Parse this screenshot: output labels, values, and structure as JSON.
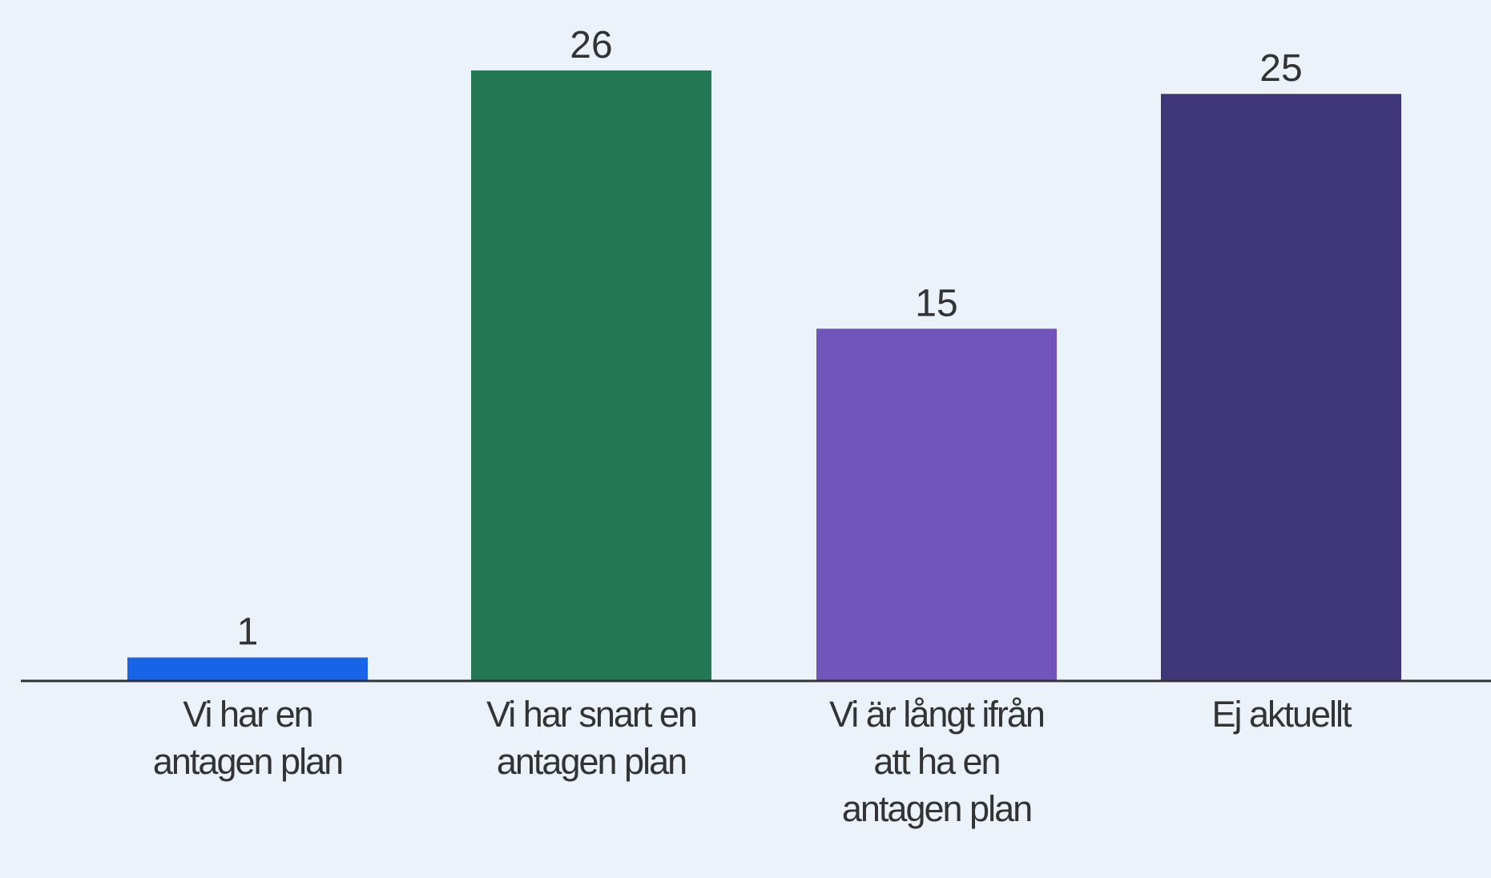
{
  "chart_data": {
    "type": "bar",
    "categories": [
      "Vi har en antagen plan",
      "Vi har snart en antagen plan",
      "Vi är långt ifrån att ha en antagen plan",
      "Ej aktuellt"
    ],
    "values": [
      1,
      26,
      15,
      25
    ],
    "colors": [
      "#1764e8",
      "#237754",
      "#7155bb",
      "#403778"
    ],
    "ylim": [
      0,
      29
    ]
  }
}
